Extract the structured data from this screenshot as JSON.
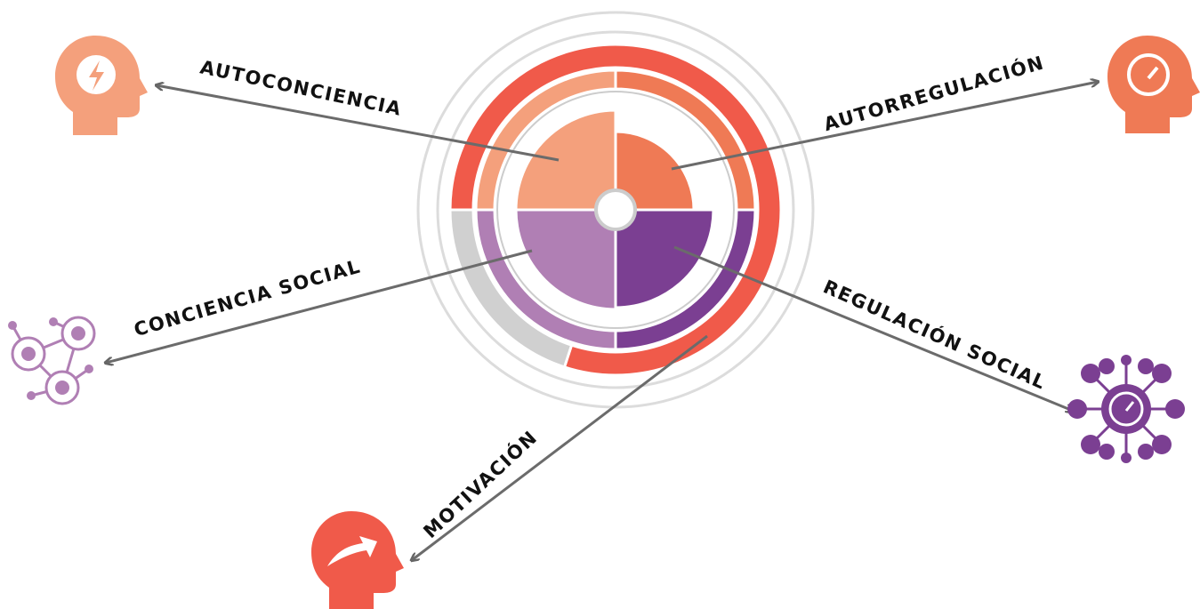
{
  "labels": {
    "top_left": "AUTOCONCIENCIA",
    "top_right": "AUTORREGULACIÓN",
    "left": "CONCIENCIA SOCIAL",
    "right": "REGULACIÓN SOCIAL",
    "bottom": "MOTIVACIÓN"
  }
}
